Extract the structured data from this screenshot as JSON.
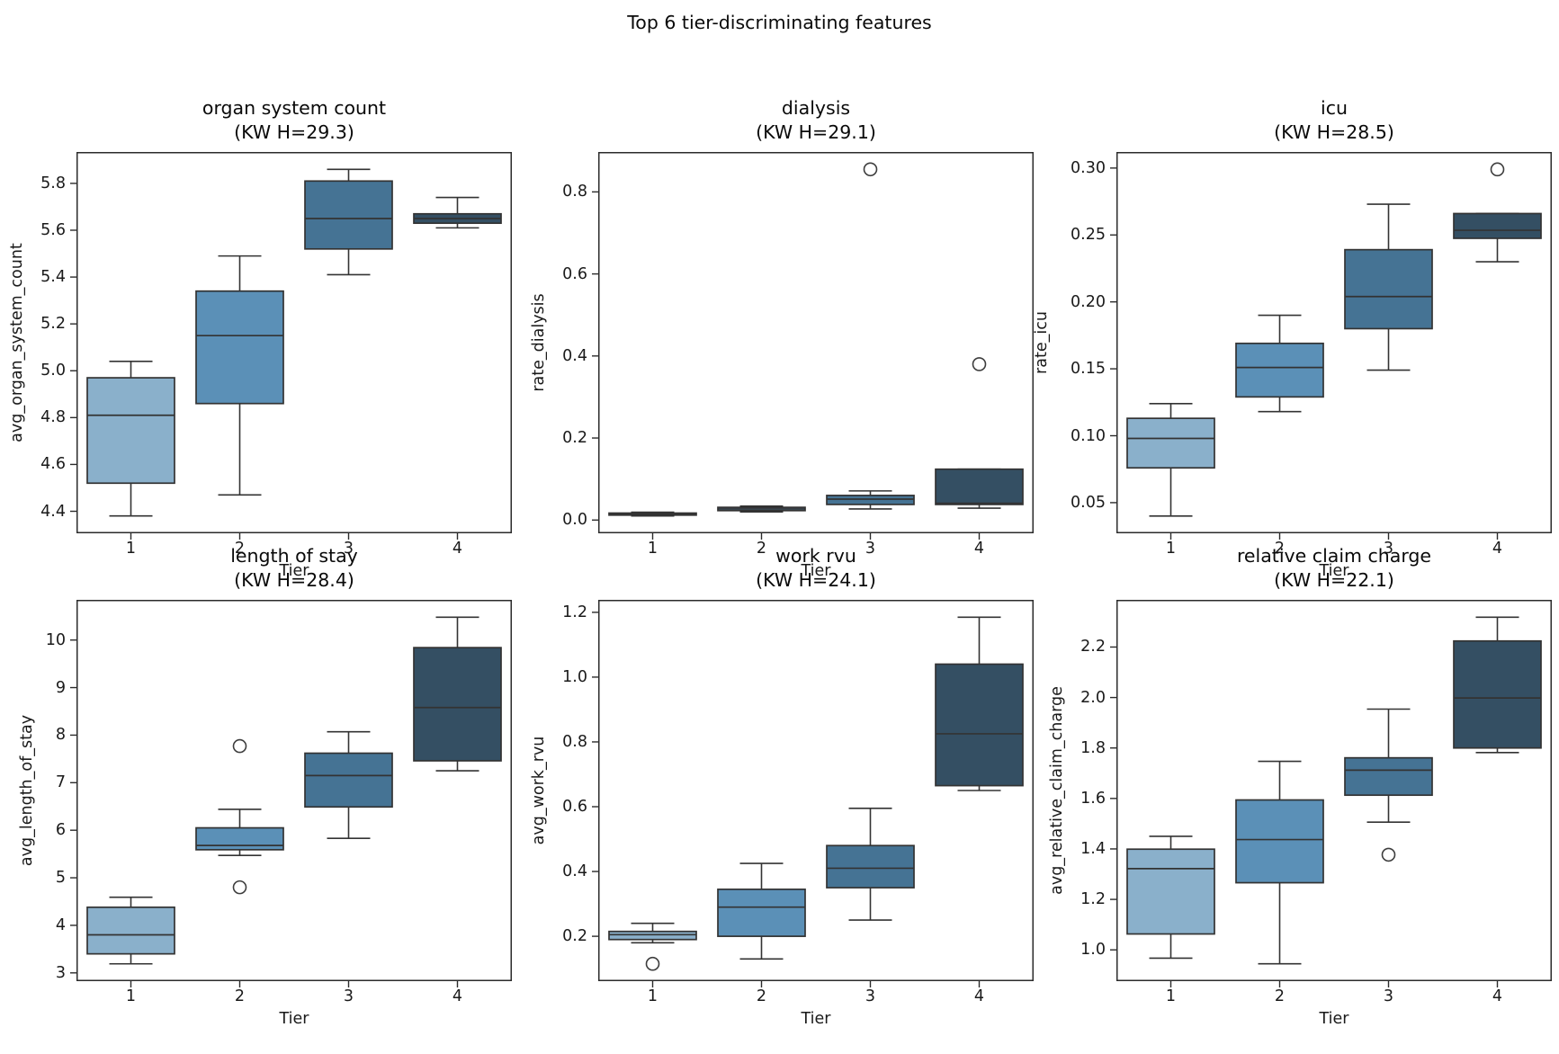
{
  "figure": {
    "suptitle": "Top 6 tier-discriminating features",
    "background": "#ffffff",
    "palette": [
      "#8ab0cb",
      "#5b90b7",
      "#457394",
      "#344f63"
    ],
    "box_line_color": "#333333",
    "spine_color": "#2b2b2b",
    "flier_color": "#3d3d3d",
    "text_color": "#111111"
  },
  "chart_data": [
    {
      "type": "box",
      "title": "organ system count",
      "subtitle": "(KW H=29.3)",
      "ylabel": "avg_organ_system_count",
      "xlabel": "Tier",
      "categories": [
        "1",
        "2",
        "3",
        "4"
      ],
      "legend": null,
      "grid": false,
      "ylim": [
        4.306,
        5.934
      ],
      "ytick_values": [
        4.4,
        4.6,
        4.8,
        5.0,
        5.2,
        5.4,
        5.6,
        5.8
      ],
      "ytick_labels": [
        "4.4",
        "4.6",
        "4.8",
        "5.0",
        "5.2",
        "5.4",
        "5.6",
        "5.8"
      ],
      "boxes": [
        {
          "whislo": 4.38,
          "q1": 4.52,
          "med": 4.81,
          "q3": 4.97,
          "whishi": 5.04,
          "fliers": []
        },
        {
          "whislo": 4.47,
          "q1": 4.86,
          "med": 5.15,
          "q3": 5.34,
          "whishi": 5.49,
          "fliers": []
        },
        {
          "whislo": 5.41,
          "q1": 5.52,
          "med": 5.65,
          "q3": 5.81,
          "whishi": 5.86,
          "fliers": []
        },
        {
          "whislo": 5.61,
          "q1": 5.63,
          "med": 5.65,
          "q3": 5.67,
          "whishi": 5.74,
          "fliers": []
        }
      ]
    },
    {
      "type": "box",
      "title": "dialysis",
      "subtitle": "(KW H=29.1)",
      "ylabel": "rate_dialysis",
      "xlabel": "Tier",
      "categories": [
        "1",
        "2",
        "3",
        "4"
      ],
      "legend": null,
      "grid": false,
      "ylim": [
        -0.0323,
        0.8973
      ],
      "ytick_values": [
        0.0,
        0.2,
        0.4,
        0.6,
        0.8
      ],
      "ytick_labels": [
        "0.0",
        "0.2",
        "0.4",
        "0.6",
        "0.8"
      ],
      "boxes": [
        {
          "whislo": 0.01,
          "q1": 0.012,
          "med": 0.014,
          "q3": 0.017,
          "whishi": 0.019,
          "fliers": []
        },
        {
          "whislo": 0.02,
          "q1": 0.023,
          "med": 0.027,
          "q3": 0.031,
          "whishi": 0.034,
          "fliers": []
        },
        {
          "whislo": 0.027,
          "q1": 0.038,
          "med": 0.051,
          "q3": 0.06,
          "whishi": 0.071,
          "fliers": [
            0.855
          ]
        },
        {
          "whislo": 0.029,
          "q1": 0.038,
          "med": 0.041,
          "q3": 0.124,
          "whishi": 0.124,
          "fliers": [
            0.38
          ]
        }
      ]
    },
    {
      "type": "box",
      "title": "icu",
      "subtitle": "(KW H=28.5)",
      "ylabel": "rate_icu",
      "xlabel": "Tier",
      "categories": [
        "1",
        "2",
        "3",
        "4"
      ],
      "legend": null,
      "grid": false,
      "ylim": [
        0.0271,
        0.312
      ],
      "ytick_values": [
        0.05,
        0.1,
        0.15,
        0.2,
        0.25,
        0.3
      ],
      "ytick_labels": [
        "0.05",
        "0.10",
        "0.15",
        "0.20",
        "0.25",
        "0.30"
      ],
      "boxes": [
        {
          "whislo": 0.04,
          "q1": 0.076,
          "med": 0.098,
          "q3": 0.113,
          "whishi": 0.124,
          "fliers": []
        },
        {
          "whislo": 0.118,
          "q1": 0.129,
          "med": 0.151,
          "q3": 0.169,
          "whishi": 0.19,
          "fliers": []
        },
        {
          "whislo": 0.149,
          "q1": 0.18,
          "med": 0.204,
          "q3": 0.239,
          "whishi": 0.273,
          "fliers": []
        },
        {
          "whislo": 0.23,
          "q1": 0.2475,
          "med": 0.2535,
          "q3": 0.266,
          "whishi": 0.266,
          "fliers": [
            0.299
          ]
        }
      ]
    },
    {
      "type": "box",
      "title": "length of stay",
      "subtitle": "(KW H=28.4)",
      "ylabel": "avg_length_of_stay",
      "xlabel": "Tier",
      "categories": [
        "1",
        "2",
        "3",
        "4"
      ],
      "legend": null,
      "grid": false,
      "ylim": [
        2.826,
        10.845
      ],
      "ytick_values": [
        3,
        4,
        5,
        6,
        7,
        8,
        9,
        10
      ],
      "ytick_labels": [
        "3",
        "4",
        "5",
        "6",
        "7",
        "8",
        "9",
        "10"
      ],
      "boxes": [
        {
          "whislo": 3.19,
          "q1": 3.4,
          "med": 3.8,
          "q3": 4.38,
          "whishi": 4.59,
          "fliers": []
        },
        {
          "whislo": 5.47,
          "q1": 5.59,
          "med": 5.68,
          "q3": 6.05,
          "whishi": 6.44,
          "fliers": [
            4.8,
            7.77
          ]
        },
        {
          "whislo": 5.83,
          "q1": 6.49,
          "med": 7.15,
          "q3": 7.62,
          "whishi": 8.07,
          "fliers": []
        },
        {
          "whislo": 7.25,
          "q1": 7.46,
          "med": 8.58,
          "q3": 9.84,
          "whishi": 10.48,
          "fliers": []
        }
      ]
    },
    {
      "type": "box",
      "title": "work rvu",
      "subtitle": "(KW H=24.1)",
      "ylabel": "avg_work_rvu",
      "xlabel": "Tier",
      "categories": [
        "1",
        "2",
        "3",
        "4"
      ],
      "legend": null,
      "grid": false,
      "ylim": [
        0.0615,
        1.2385
      ],
      "ytick_values": [
        0.2,
        0.4,
        0.6,
        0.8,
        1.0,
        1.2
      ],
      "ytick_labels": [
        "0.2",
        "0.4",
        "0.6",
        "0.8",
        "1.0",
        "1.2"
      ],
      "boxes": [
        {
          "whislo": 0.18,
          "q1": 0.19,
          "med": 0.205,
          "q3": 0.215,
          "whishi": 0.24,
          "fliers": [
            0.115
          ]
        },
        {
          "whislo": 0.13,
          "q1": 0.2,
          "med": 0.29,
          "q3": 0.345,
          "whishi": 0.425,
          "fliers": []
        },
        {
          "whislo": 0.25,
          "q1": 0.35,
          "med": 0.41,
          "q3": 0.48,
          "whishi": 0.595,
          "fliers": []
        },
        {
          "whislo": 0.65,
          "q1": 0.665,
          "med": 0.825,
          "q3": 1.04,
          "whishi": 1.185,
          "fliers": []
        }
      ]
    },
    {
      "type": "box",
      "title": "relative claim charge",
      "subtitle": "(KW H=22.1)",
      "ylabel": "avg_relative_claim_charge",
      "xlabel": "Tier",
      "categories": [
        "1",
        "2",
        "3",
        "4"
      ],
      "legend": null,
      "grid": false,
      "ylim": [
        0.876,
        2.387
      ],
      "ytick_values": [
        1.0,
        1.2,
        1.4,
        1.6,
        1.8,
        2.0,
        2.2
      ],
      "ytick_labels": [
        "1.0",
        "1.2",
        "1.4",
        "1.6",
        "1.8",
        "2.0",
        "2.2"
      ],
      "boxes": [
        {
          "whislo": 0.967,
          "q1": 1.063,
          "med": 1.322,
          "q3": 1.399,
          "whishi": 1.45,
          "fliers": []
        },
        {
          "whislo": 0.945,
          "q1": 1.266,
          "med": 1.437,
          "q3": 1.594,
          "whishi": 1.747,
          "fliers": []
        },
        {
          "whislo": 1.506,
          "q1": 1.613,
          "med": 1.712,
          "q3": 1.761,
          "whishi": 1.954,
          "fliers": [
            1.377
          ]
        },
        {
          "whislo": 1.782,
          "q1": 1.8,
          "med": 1.998,
          "q3": 2.224,
          "whishi": 2.318,
          "fliers": []
        }
      ]
    }
  ]
}
